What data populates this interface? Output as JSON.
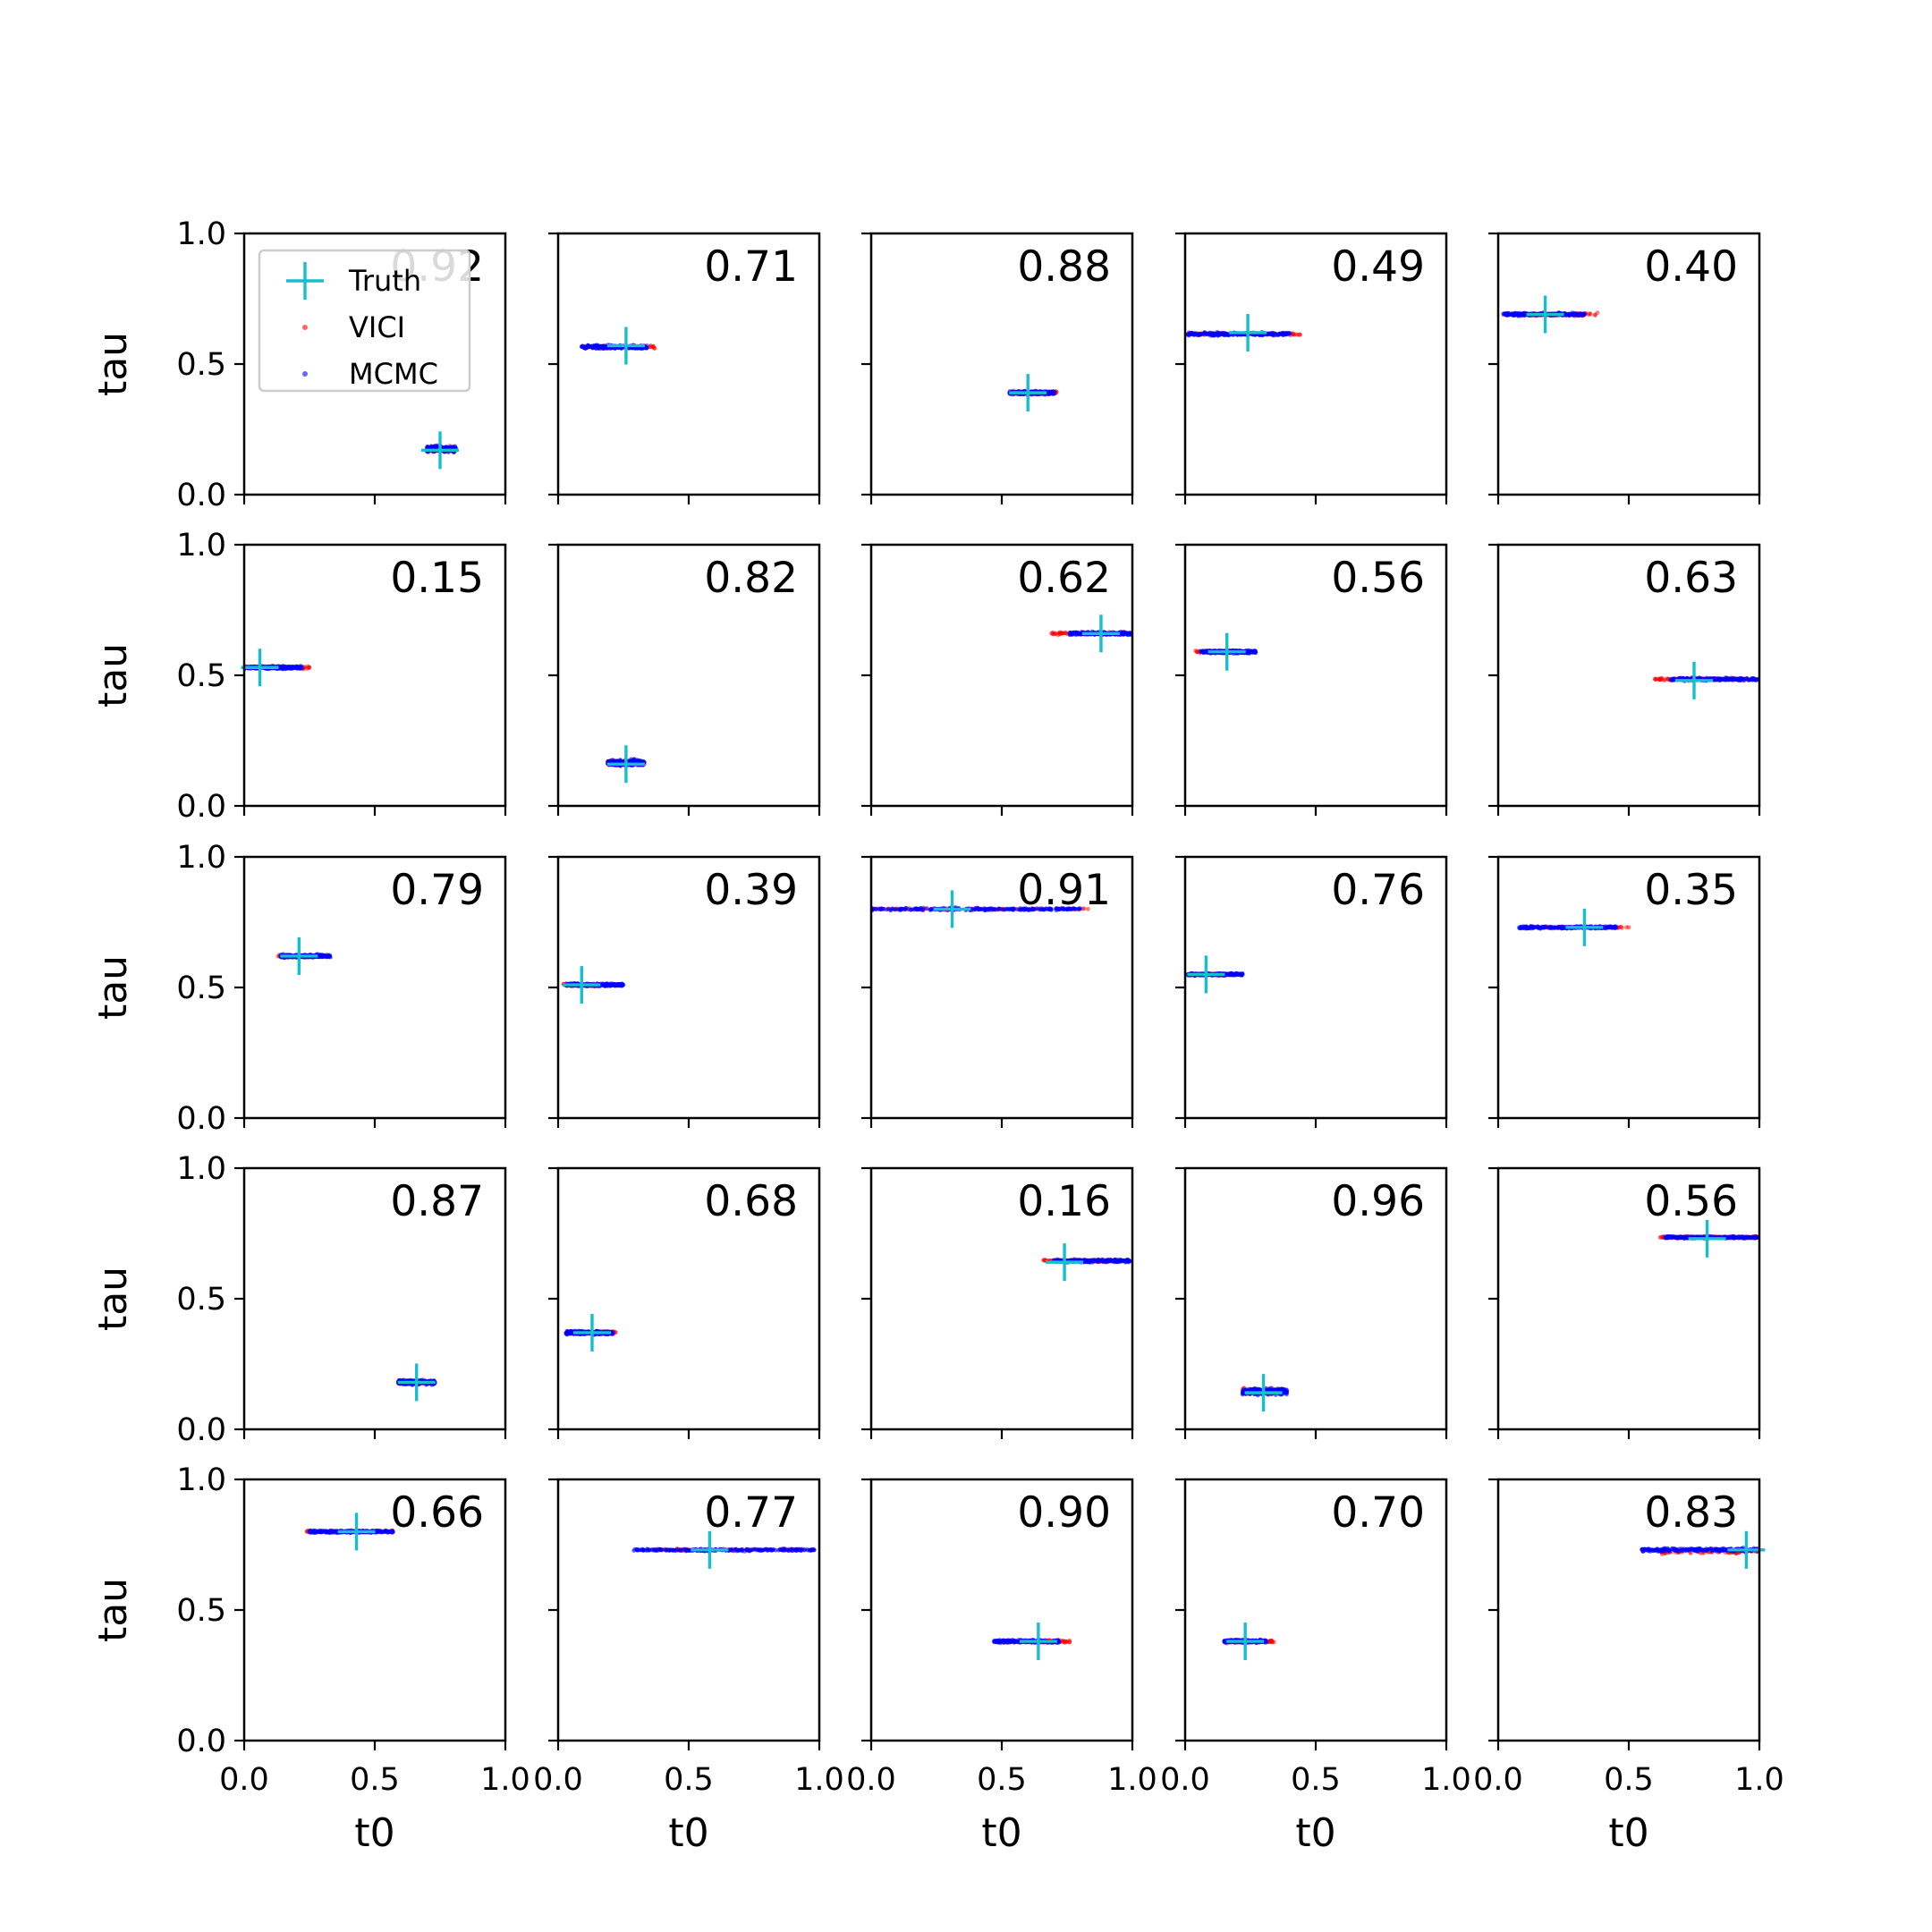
{
  "chart_data": {
    "type": "scatter",
    "layout": "5x5 grid of scatter subplots",
    "xlabel": "t0",
    "ylabel": "tau",
    "xlim": [
      0.0,
      1.0
    ],
    "ylim": [
      0.0,
      1.0
    ],
    "xticks": [
      "0.0",
      "0.5",
      "1.0"
    ],
    "yticks": [
      "0.0",
      "0.5",
      "1.0"
    ],
    "grid": false,
    "legend": {
      "location": "upper-left of first panel",
      "entries": [
        {
          "label": "Truth",
          "marker": "plus",
          "color": "#17becf"
        },
        {
          "label": "VICI",
          "marker": "dot",
          "color": "#ff0000"
        },
        {
          "label": "MCMC",
          "marker": "dot",
          "color": "#0000ff"
        }
      ]
    },
    "colors": {
      "truth": "#17becf",
      "vici": "#ff0000",
      "mcmc": "#0000ff"
    },
    "panels": [
      {
        "overlap": "0.92",
        "truth": [
          0.75,
          0.17
        ],
        "mcmc": {
          "min": 0.7,
          "max": 0.81,
          "y": 0.175,
          "spread": 0.01
        },
        "vici": {
          "min": 0.7,
          "max": 0.79,
          "y": 0.175,
          "spread": 0.01
        }
      },
      {
        "overlap": "0.71",
        "truth": [
          0.26,
          0.57
        ],
        "mcmc": {
          "min": 0.09,
          "max": 0.34,
          "y": 0.565,
          "spread": 0.006
        },
        "vici": {
          "min": 0.1,
          "max": 0.37,
          "y": 0.565,
          "spread": 0.006
        }
      },
      {
        "overlap": "0.88",
        "truth": [
          0.6,
          0.39
        ],
        "mcmc": {
          "min": 0.53,
          "max": 0.7,
          "y": 0.39,
          "spread": 0.006
        },
        "vici": {
          "min": 0.54,
          "max": 0.71,
          "y": 0.39,
          "spread": 0.006
        }
      },
      {
        "overlap": "0.49",
        "truth": [
          0.24,
          0.62
        ],
        "mcmc": {
          "min": 0.01,
          "max": 0.4,
          "y": 0.615,
          "spread": 0.005
        },
        "vici": {
          "min": 0.01,
          "max": 0.44,
          "y": 0.615,
          "spread": 0.005
        }
      },
      {
        "overlap": "0.40",
        "truth": [
          0.18,
          0.69
        ],
        "mcmc": {
          "min": 0.02,
          "max": 0.33,
          "y": 0.69,
          "spread": 0.005
        },
        "vici": {
          "min": 0.02,
          "max": 0.38,
          "y": 0.69,
          "spread": 0.005
        }
      },
      {
        "overlap": "0.15",
        "truth": [
          0.06,
          0.53
        ],
        "mcmc": {
          "min": 0.0,
          "max": 0.22,
          "y": 0.53,
          "spread": 0.005
        },
        "vici": {
          "min": 0.0,
          "max": 0.25,
          "y": 0.53,
          "spread": 0.005
        }
      },
      {
        "overlap": "0.82",
        "truth": [
          0.26,
          0.16
        ],
        "mcmc": {
          "min": 0.19,
          "max": 0.33,
          "y": 0.165,
          "spread": 0.01
        },
        "vici": {
          "min": 0.19,
          "max": 0.33,
          "y": 0.165,
          "spread": 0.01
        }
      },
      {
        "overlap": "0.62",
        "truth": [
          0.88,
          0.66
        ],
        "mcmc": {
          "min": 0.76,
          "max": 1.0,
          "y": 0.66,
          "spread": 0.005
        },
        "vici": {
          "min": 0.69,
          "max": 0.97,
          "y": 0.66,
          "spread": 0.005
        }
      },
      {
        "overlap": "0.56",
        "truth": [
          0.16,
          0.59
        ],
        "mcmc": {
          "min": 0.06,
          "max": 0.27,
          "y": 0.59,
          "spread": 0.005
        },
        "vici": {
          "min": 0.04,
          "max": 0.26,
          "y": 0.59,
          "spread": 0.005
        }
      },
      {
        "overlap": "0.63",
        "truth": [
          0.75,
          0.48
        ],
        "mcmc": {
          "min": 0.66,
          "max": 1.0,
          "y": 0.485,
          "spread": 0.005
        },
        "vici": {
          "min": 0.6,
          "max": 0.98,
          "y": 0.485,
          "spread": 0.005
        }
      },
      {
        "overlap": "0.79",
        "truth": [
          0.21,
          0.62
        ],
        "mcmc": {
          "min": 0.14,
          "max": 0.33,
          "y": 0.62,
          "spread": 0.005
        },
        "vici": {
          "min": 0.13,
          "max": 0.32,
          "y": 0.62,
          "spread": 0.005
        }
      },
      {
        "overlap": "0.39",
        "truth": [
          0.09,
          0.51
        ],
        "mcmc": {
          "min": 0.03,
          "max": 0.25,
          "y": 0.51,
          "spread": 0.005
        },
        "vici": {
          "min": 0.02,
          "max": 0.24,
          "y": 0.51,
          "spread": 0.005
        }
      },
      {
        "overlap": "0.91",
        "truth": [
          0.31,
          0.8
        ],
        "mcmc": {
          "min": 0.0,
          "max": 0.8,
          "y": 0.8,
          "spread": 0.004
        },
        "vici": {
          "min": 0.0,
          "max": 0.83,
          "y": 0.8,
          "spread": 0.004
        }
      },
      {
        "overlap": "0.76",
        "truth": [
          0.08,
          0.55
        ],
        "mcmc": {
          "min": 0.01,
          "max": 0.22,
          "y": 0.55,
          "spread": 0.004
        },
        "vici": {
          "min": 0.01,
          "max": 0.18,
          "y": 0.55,
          "spread": 0.004
        }
      },
      {
        "overlap": "0.35",
        "truth": [
          0.33,
          0.73
        ],
        "mcmc": {
          "min": 0.08,
          "max": 0.45,
          "y": 0.73,
          "spread": 0.004
        },
        "vici": {
          "min": 0.1,
          "max": 0.5,
          "y": 0.73,
          "spread": 0.004
        }
      },
      {
        "overlap": "0.87",
        "truth": [
          0.66,
          0.18
        ],
        "mcmc": {
          "min": 0.59,
          "max": 0.73,
          "y": 0.18,
          "spread": 0.008
        },
        "vici": {
          "min": 0.59,
          "max": 0.72,
          "y": 0.18,
          "spread": 0.008
        }
      },
      {
        "overlap": "0.68",
        "truth": [
          0.13,
          0.37
        ],
        "mcmc": {
          "min": 0.03,
          "max": 0.21,
          "y": 0.37,
          "spread": 0.006
        },
        "vici": {
          "min": 0.03,
          "max": 0.22,
          "y": 0.37,
          "spread": 0.006
        }
      },
      {
        "overlap": "0.16",
        "truth": [
          0.74,
          0.64
        ],
        "mcmc": {
          "min": 0.7,
          "max": 0.99,
          "y": 0.645,
          "spread": 0.005
        },
        "vici": {
          "min": 0.66,
          "max": 0.92,
          "y": 0.645,
          "spread": 0.005
        }
      },
      {
        "overlap": "0.96",
        "truth": [
          0.3,
          0.14
        ],
        "mcmc": {
          "min": 0.22,
          "max": 0.39,
          "y": 0.145,
          "spread": 0.012
        },
        "vici": {
          "min": 0.22,
          "max": 0.38,
          "y": 0.145,
          "spread": 0.012
        }
      },
      {
        "overlap": "0.56",
        "truth": [
          0.8,
          0.73
        ],
        "mcmc": {
          "min": 0.64,
          "max": 1.0,
          "y": 0.735,
          "spread": 0.004
        },
        "vici": {
          "min": 0.62,
          "max": 0.99,
          "y": 0.735,
          "spread": 0.004
        }
      },
      {
        "overlap": "0.66",
        "truth": [
          0.43,
          0.8
        ],
        "mcmc": {
          "min": 0.25,
          "max": 0.57,
          "y": 0.8,
          "spread": 0.004
        },
        "vici": {
          "min": 0.24,
          "max": 0.57,
          "y": 0.8,
          "spread": 0.004
        }
      },
      {
        "overlap": "0.77",
        "truth": [
          0.58,
          0.73
        ],
        "mcmc": {
          "min": 0.29,
          "max": 0.98,
          "y": 0.73,
          "spread": 0.004
        },
        "vici": {
          "min": 0.38,
          "max": 0.98,
          "y": 0.73,
          "spread": 0.004
        }
      },
      {
        "overlap": "0.90",
        "truth": [
          0.64,
          0.38
        ],
        "mcmc": {
          "min": 0.47,
          "max": 0.72,
          "y": 0.38,
          "spread": 0.005
        },
        "vici": {
          "min": 0.5,
          "max": 0.76,
          "y": 0.38,
          "spread": 0.005
        }
      },
      {
        "overlap": "0.70",
        "truth": [
          0.23,
          0.38
        ],
        "mcmc": {
          "min": 0.15,
          "max": 0.31,
          "y": 0.38,
          "spread": 0.005
        },
        "vici": {
          "min": 0.16,
          "max": 0.34,
          "y": 0.38,
          "spread": 0.005
        }
      },
      {
        "overlap": "0.83",
        "truth": [
          0.95,
          0.73
        ],
        "mcmc": {
          "min": 0.55,
          "max": 1.0,
          "y": 0.73,
          "spread": 0.006
        },
        "vici": {
          "min": 0.62,
          "max": 0.99,
          "y": 0.725,
          "spread": 0.008
        }
      }
    ]
  }
}
